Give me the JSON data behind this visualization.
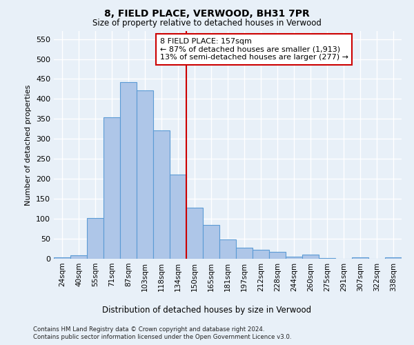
{
  "title": "8, FIELD PLACE, VERWOOD, BH31 7PR",
  "subtitle": "Size of property relative to detached houses in Verwood",
  "xlabel": "Distribution of detached houses by size in Verwood",
  "ylabel": "Number of detached properties",
  "categories": [
    "24sqm",
    "40sqm",
    "55sqm",
    "71sqm",
    "87sqm",
    "103sqm",
    "118sqm",
    "134sqm",
    "150sqm",
    "165sqm",
    "181sqm",
    "197sqm",
    "212sqm",
    "228sqm",
    "244sqm",
    "260sqm",
    "275sqm",
    "291sqm",
    "307sqm",
    "322sqm",
    "338sqm"
  ],
  "values": [
    3,
    8,
    102,
    354,
    443,
    421,
    321,
    210,
    128,
    85,
    48,
    27,
    22,
    18,
    6,
    10,
    1,
    0,
    3,
    0,
    3
  ],
  "bar_color": "#aec6e8",
  "bar_edge_color": "#5b9bd5",
  "vline_index": 8,
  "vline_color": "#cc0000",
  "annotation_line1": "8 FIELD PLACE: 157sqm",
  "annotation_line2": "← 87% of detached houses are smaller (1,913)",
  "annotation_line3": "13% of semi-detached houses are larger (277) →",
  "annotation_box_color": "#cc0000",
  "ylim": [
    0,
    570
  ],
  "yticks": [
    0,
    50,
    100,
    150,
    200,
    250,
    300,
    350,
    400,
    450,
    500,
    550
  ],
  "background_color": "#e8f0f8",
  "grid_color": "#ffffff",
  "footer_line1": "Contains HM Land Registry data © Crown copyright and database right 2024.",
  "footer_line2": "Contains public sector information licensed under the Open Government Licence v3.0."
}
